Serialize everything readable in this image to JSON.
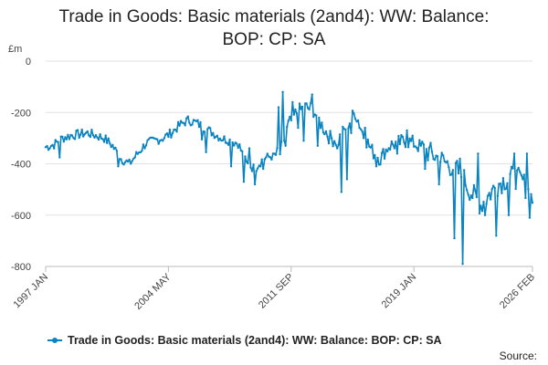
{
  "chart_data": {
    "type": "line",
    "title_line1": "Trade in Goods: Basic materials (2and4): WW: Balance:",
    "title_line2": "BOP: CP: SA",
    "ylabel": "£m",
    "ylim": [
      -800,
      0
    ],
    "yticks": [
      0,
      -200,
      -400,
      -600,
      -800
    ],
    "ytick_labels": [
      "0",
      "-200",
      "-400",
      "-600",
      "-800"
    ],
    "xlim": [
      0,
      349
    ],
    "xticks": [
      0,
      88,
      176,
      264,
      349
    ],
    "xtick_labels": [
      "1997 JAN",
      "2004 MAY",
      "2011 SEP",
      "2019 JAN",
      "2026 FEB"
    ],
    "grid": true,
    "legend_position": "bottom",
    "series": [
      {
        "name": "Trade in Goods: Basic materials (2and4): WW: Balance: BOP: CP: SA",
        "color": "#0a84c1",
        "anchors_x": [
          0,
          6,
          12,
          18,
          24,
          30,
          36,
          42,
          48,
          54,
          60,
          66,
          72,
          78,
          84,
          90,
          96,
          102,
          108,
          114,
          120,
          126,
          132,
          138,
          144,
          150,
          156,
          162,
          168,
          174,
          180,
          186,
          192,
          198,
          204,
          210,
          216,
          222,
          228,
          234,
          240,
          246,
          252,
          258,
          264,
          270,
          276,
          282,
          288,
          294,
          300,
          306,
          312,
          318,
          324,
          330,
          336,
          342,
          349
        ],
        "anchors_y": [
          -335,
          -325,
          -300,
          -290,
          -285,
          -280,
          -290,
          -300,
          -330,
          -380,
          -400,
          -360,
          -320,
          -310,
          -300,
          -280,
          -250,
          -230,
          -240,
          -260,
          -280,
          -300,
          -310,
          -320,
          -400,
          -420,
          -380,
          -370,
          -360,
          -250,
          -200,
          -180,
          -190,
          -250,
          -300,
          -310,
          -250,
          -200,
          -290,
          -350,
          -380,
          -330,
          -320,
          -310,
          -320,
          -340,
          -360,
          -380,
          -400,
          -420,
          -460,
          -520,
          -560,
          -520,
          -480,
          -460,
          -450,
          -470,
          -540
        ],
        "spikes": [
          [
            10,
            -375
          ],
          [
            52,
            -410
          ],
          [
            112,
            -305
          ],
          [
            115,
            -355
          ],
          [
            133,
            -410
          ],
          [
            142,
            -470
          ],
          [
            146,
            -340
          ],
          [
            150,
            -480
          ],
          [
            156,
            -420
          ],
          [
            163,
            -360
          ],
          [
            167,
            -180
          ],
          [
            170,
            -120
          ],
          [
            172,
            -330
          ],
          [
            177,
            -160
          ],
          [
            181,
            -260
          ],
          [
            185,
            -310
          ],
          [
            191,
            -130
          ],
          [
            195,
            -330
          ],
          [
            209,
            -340
          ],
          [
            212,
            -510
          ],
          [
            216,
            -460
          ],
          [
            219,
            -280
          ],
          [
            229,
            -260
          ],
          [
            237,
            -410
          ],
          [
            243,
            -380
          ],
          [
            252,
            -360
          ],
          [
            259,
            -270
          ],
          [
            272,
            -420
          ],
          [
            282,
            -480
          ],
          [
            293,
            -690
          ],
          [
            297,
            -380
          ],
          [
            299,
            -790
          ],
          [
            303,
            -520
          ],
          [
            310,
            -360
          ],
          [
            315,
            -600
          ],
          [
            323,
            -680
          ],
          [
            332,
            -600
          ],
          [
            336,
            -360
          ],
          [
            342,
            -460
          ],
          [
            345,
            -360
          ],
          [
            347,
            -610
          ]
        ]
      }
    ]
  },
  "source_label": "Source:"
}
